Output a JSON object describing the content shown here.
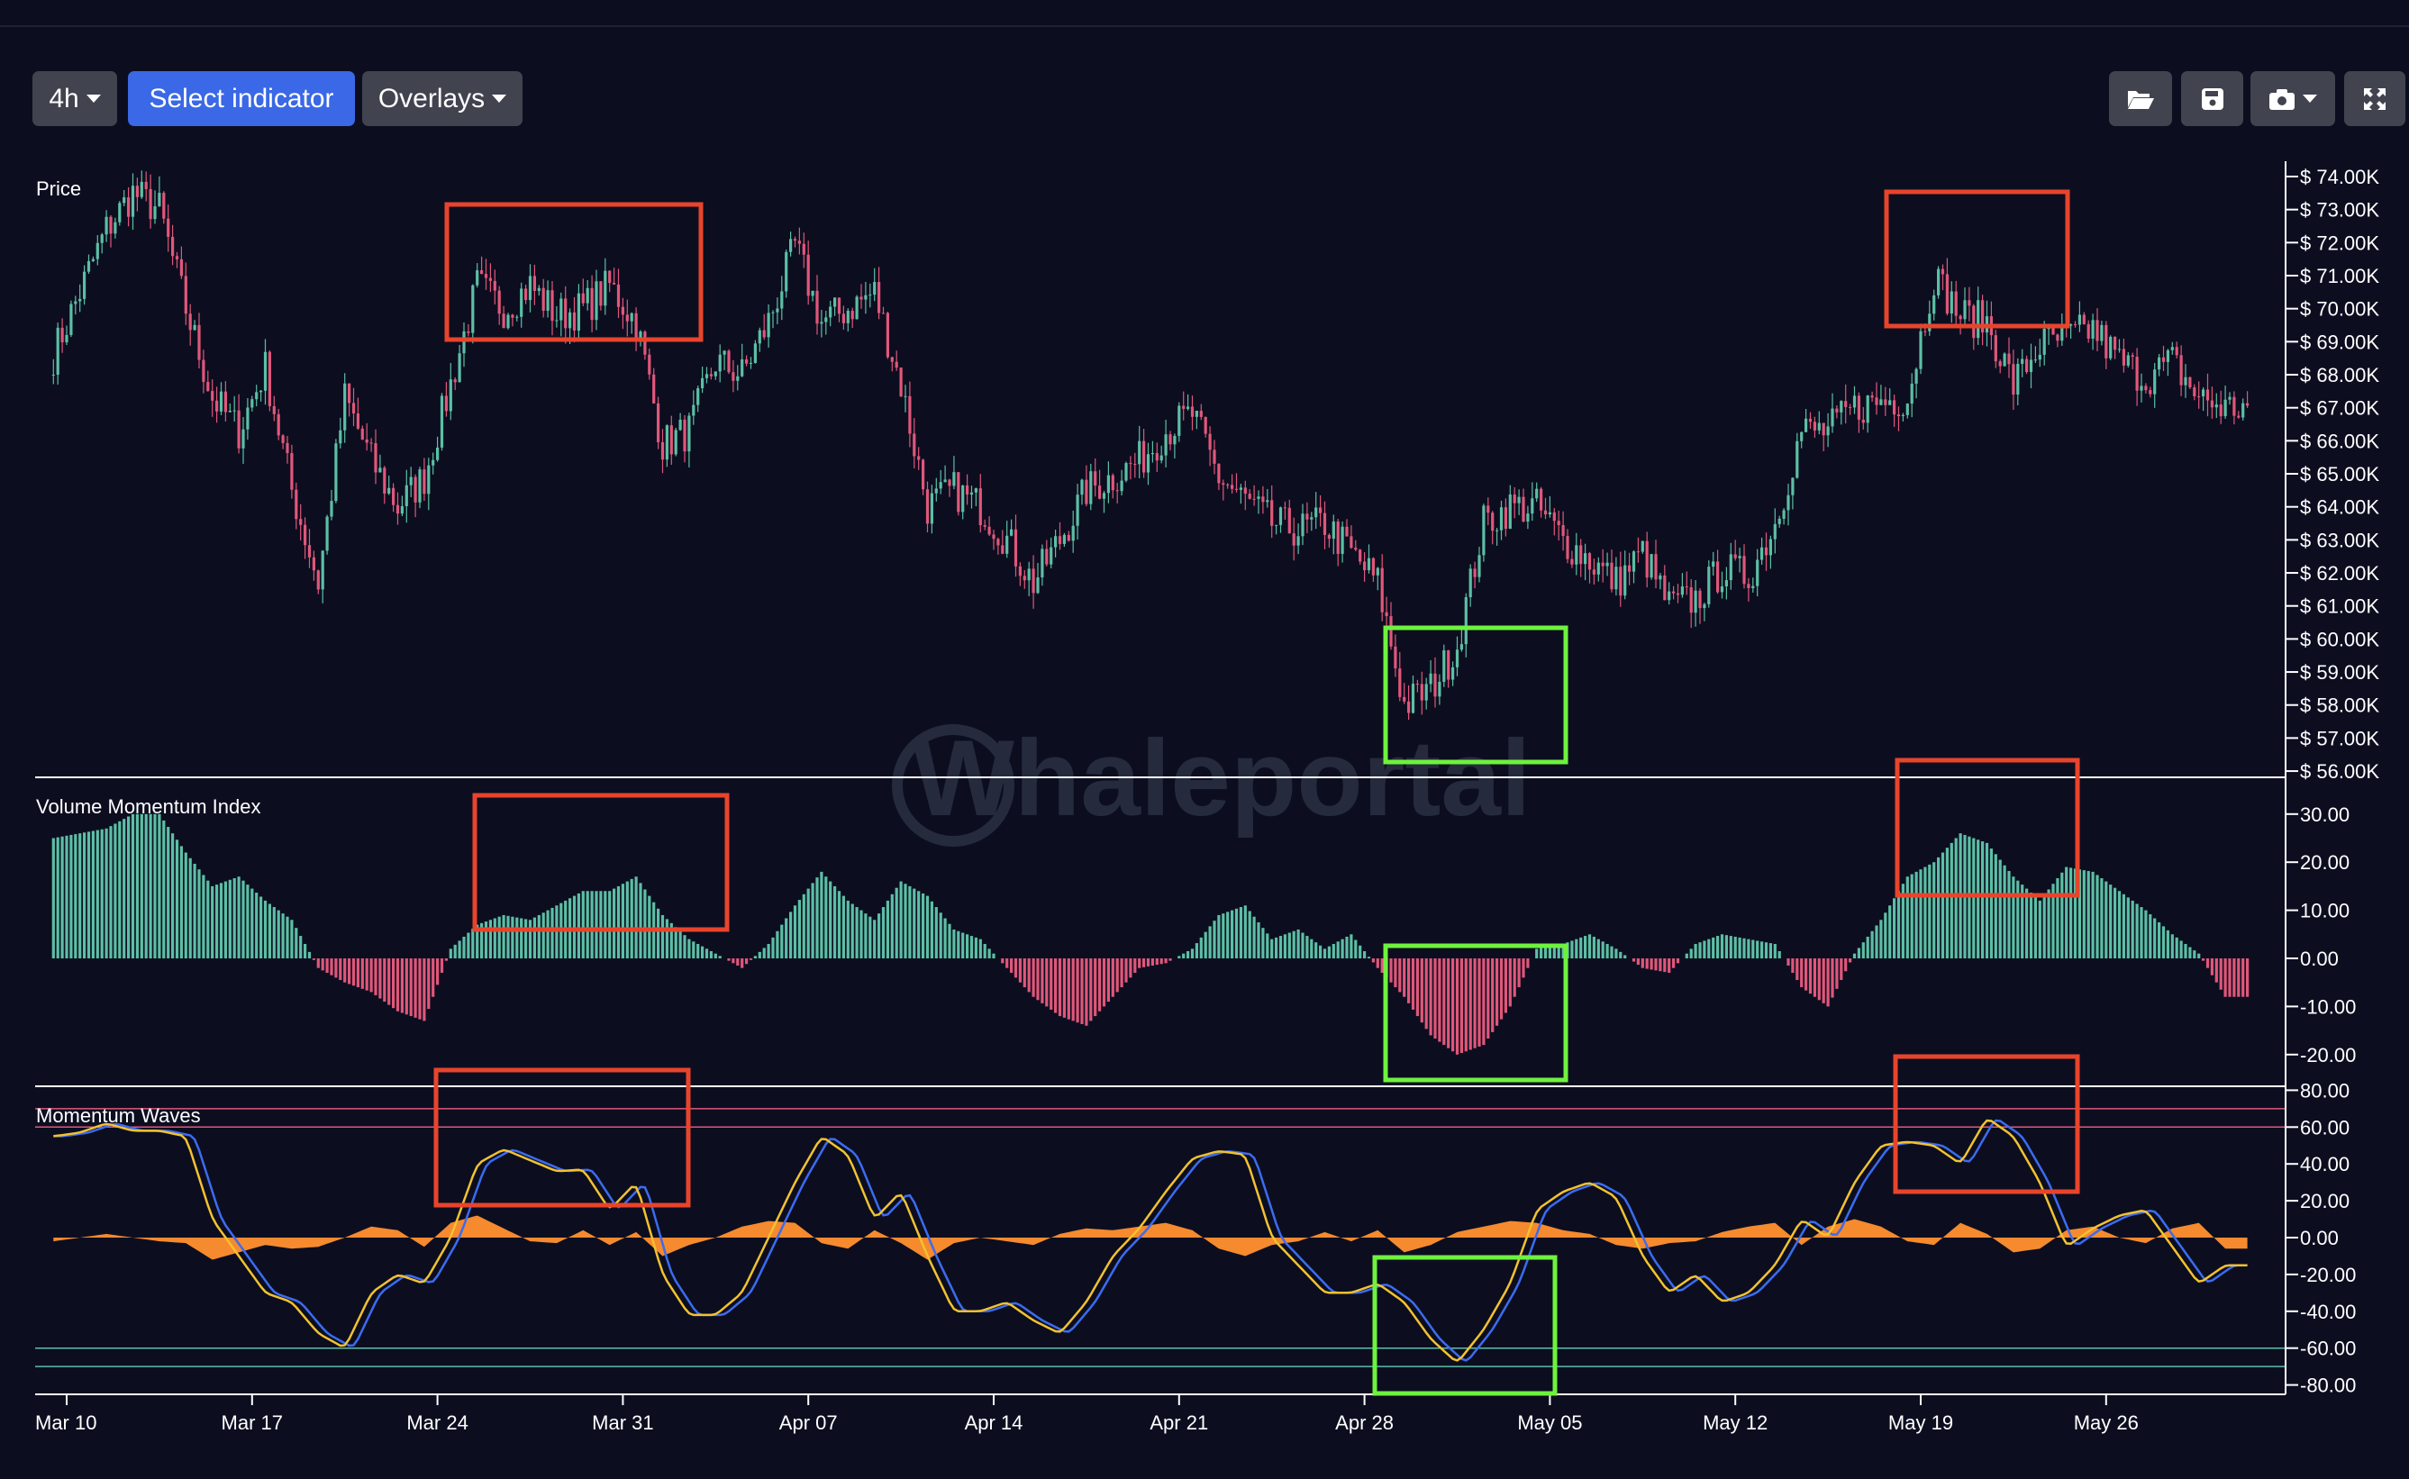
{
  "toolbar": {
    "timeframe": "4h",
    "select_indicator": "Select indicator",
    "overlays": "Overlays",
    "icons": [
      "folder-open-icon",
      "save-icon",
      "camera-icon",
      "fullscreen-icon"
    ]
  },
  "watermark": "Whaleportal",
  "colors": {
    "background": "#0c0e20",
    "up": "#5cbfa5",
    "down": "#e0577a",
    "wave_fast": "#f2c230",
    "wave_slow": "#3b6cf0",
    "wave_histogram": "#f58a2e",
    "annotation_bearish": "#e8442c",
    "annotation_bullish": "#6ef23e",
    "overbought_lines": "#e0577a",
    "oversold_lines": "#5cbfa5"
  },
  "chart_data": [
    {
      "type": "candlestick",
      "title": "Price",
      "interval": "4h",
      "x_tick_labels": [
        "Mar 10",
        "Mar 17",
        "Mar 24",
        "Mar 31",
        "Apr 07",
        "Apr 14",
        "Apr 21",
        "Apr 28",
        "May 05",
        "May 12",
        "May 19",
        "May 26"
      ],
      "y_tick_labels": [
        "$ 74.00K",
        "$ 73.00K",
        "$ 72.00K",
        "$ 71.00K",
        "$ 70.00K",
        "$ 69.00K",
        "$ 68.00K",
        "$ 67.00K",
        "$ 66.00K",
        "$ 65.00K",
        "$ 64.00K",
        "$ 63.00K",
        "$ 62.00K",
        "$ 61.00K",
        "$ 60.00K",
        "$ 59.00K",
        "$ 58.00K",
        "$ 57.00K",
        "$ 56.00K"
      ],
      "ylim": [
        56000,
        74000
      ],
      "daily_close_k": [
        68.6,
        70.5,
        72.4,
        73.5,
        73.0,
        70.0,
        67.3,
        66.3,
        68.2,
        64.5,
        61.7,
        67.3,
        65.4,
        64.0,
        64.9,
        67.7,
        70.7,
        70.0,
        70.7,
        69.8,
        70.0,
        70.7,
        69.6,
        65.9,
        66.3,
        68.4,
        68.0,
        69.6,
        71.9,
        69.6,
        70.0,
        70.5,
        67.7,
        64.0,
        64.5,
        64.0,
        63.0,
        61.7,
        63.0,
        64.5,
        64.9,
        65.4,
        66.3,
        66.8,
        64.9,
        64.2,
        63.5,
        63.3,
        63.5,
        62.6,
        61.7,
        58.0,
        58.5,
        59.8,
        63.5,
        64.0,
        64.0,
        63.0,
        62.4,
        61.7,
        62.6,
        61.0,
        61.2,
        62.1,
        61.9,
        63.5,
        66.3,
        66.3,
        67.0,
        67.2,
        67.3,
        71.0,
        69.8,
        69.6,
        67.7,
        68.9,
        69.1,
        69.4,
        68.4,
        67.9,
        68.4,
        67.3,
        67.0
      ]
    },
    {
      "type": "bar",
      "title": "Volume Momentum Index",
      "y_tick_labels": [
        "30.00",
        "20.00",
        "10.00",
        "0.00",
        "-10.00",
        "-20.00"
      ],
      "ylim": [
        -23,
        33
      ],
      "daily_values": [
        25,
        26,
        27,
        30,
        30,
        22,
        15,
        17,
        12,
        8,
        -2,
        -5,
        -7,
        -11,
        -13,
        2,
        7,
        9,
        8,
        11,
        14,
        14,
        17,
        9,
        4,
        1,
        -2,
        3,
        11,
        18,
        12,
        8,
        16,
        13,
        6,
        4,
        -2,
        -8,
        -12,
        -14,
        -8,
        -2,
        -1,
        2,
        9,
        11,
        4,
        6,
        2,
        5,
        -2,
        -8,
        -16,
        -20,
        -18,
        -10,
        2,
        3,
        5,
        2,
        -2,
        -3,
        3,
        5,
        4,
        3,
        -6,
        -10,
        1,
        8,
        17,
        20,
        26,
        24,
        17,
        12,
        19,
        18,
        14,
        10,
        5,
        1,
        -8
      ]
    },
    {
      "type": "line",
      "title": "Momentum Waves",
      "y_tick_labels": [
        "80.00",
        "60.00",
        "40.00",
        "20.00",
        "0.00",
        "-20.00",
        "-40.00",
        "-60.00",
        "-80.00"
      ],
      "ylim": [
        -82,
        82
      ],
      "reference_lines": [
        70,
        60,
        -60,
        -70
      ],
      "daily_wave": [
        55,
        57,
        62,
        58,
        58,
        55,
        10,
        -10,
        -30,
        -35,
        -52,
        -60,
        -30,
        -20,
        -25,
        0,
        40,
        48,
        42,
        36,
        37,
        15,
        30,
        -20,
        -42,
        -42,
        -30,
        0,
        30,
        55,
        45,
        10,
        25,
        -10,
        -40,
        -40,
        -35,
        -45,
        -52,
        -35,
        -10,
        5,
        25,
        43,
        47,
        45,
        0,
        -15,
        -30,
        -30,
        -25,
        -35,
        -55,
        -68,
        -50,
        -25,
        15,
        25,
        30,
        22,
        -10,
        -30,
        -20,
        -35,
        -30,
        -15,
        10,
        0,
        30,
        50,
        52,
        50,
        40,
        65,
        55,
        30,
        -5,
        5,
        12,
        15,
        -5,
        -25,
        -15
      ],
      "daily_histogram": [
        -2,
        0,
        2,
        0,
        -2,
        -3,
        -12,
        -8,
        -4,
        -6,
        -5,
        0,
        6,
        4,
        -5,
        8,
        12,
        5,
        -2,
        -3,
        4,
        -4,
        3,
        -10,
        -4,
        0,
        6,
        9,
        8,
        -3,
        -6,
        4,
        -3,
        -12,
        -3,
        0,
        -2,
        -4,
        2,
        5,
        4,
        6,
        8,
        4,
        -6,
        -10,
        -4,
        -2,
        3,
        -2,
        4,
        -8,
        -4,
        3,
        6,
        9,
        8,
        4,
        2,
        -4,
        -6,
        -3,
        -2,
        3,
        6,
        8,
        -4,
        6,
        10,
        6,
        -2,
        -4,
        8,
        2,
        -8,
        -6,
        4,
        6,
        0,
        -3,
        5,
        8,
        -6
      ]
    }
  ],
  "annotations": [
    {
      "pane": "Price",
      "kind": "bearish",
      "from": "Mar 25",
      "to": "Apr 02"
    },
    {
      "pane": "Price",
      "kind": "bearish",
      "from": "May 19",
      "to": "May 25"
    },
    {
      "pane": "Price",
      "kind": "bullish",
      "from": "Apr 29",
      "to": "May 05"
    },
    {
      "pane": "Volume Momentum Index",
      "kind": "bearish",
      "from": "Mar 26",
      "to": "Apr 03"
    },
    {
      "pane": "Volume Momentum Index",
      "kind": "bearish",
      "from": "May 19",
      "to": "May 25"
    },
    {
      "pane": "Volume Momentum Index",
      "kind": "bullish",
      "from": "Apr 29",
      "to": "May 05"
    },
    {
      "pane": "Momentum Waves",
      "kind": "bearish",
      "from": "Mar 24",
      "to": "Apr 01"
    },
    {
      "pane": "Momentum Waves",
      "kind": "bearish",
      "from": "May 19",
      "to": "May 25"
    },
    {
      "pane": "Momentum Waves",
      "kind": "bullish",
      "from": "Apr 28",
      "to": "May 04"
    }
  ]
}
